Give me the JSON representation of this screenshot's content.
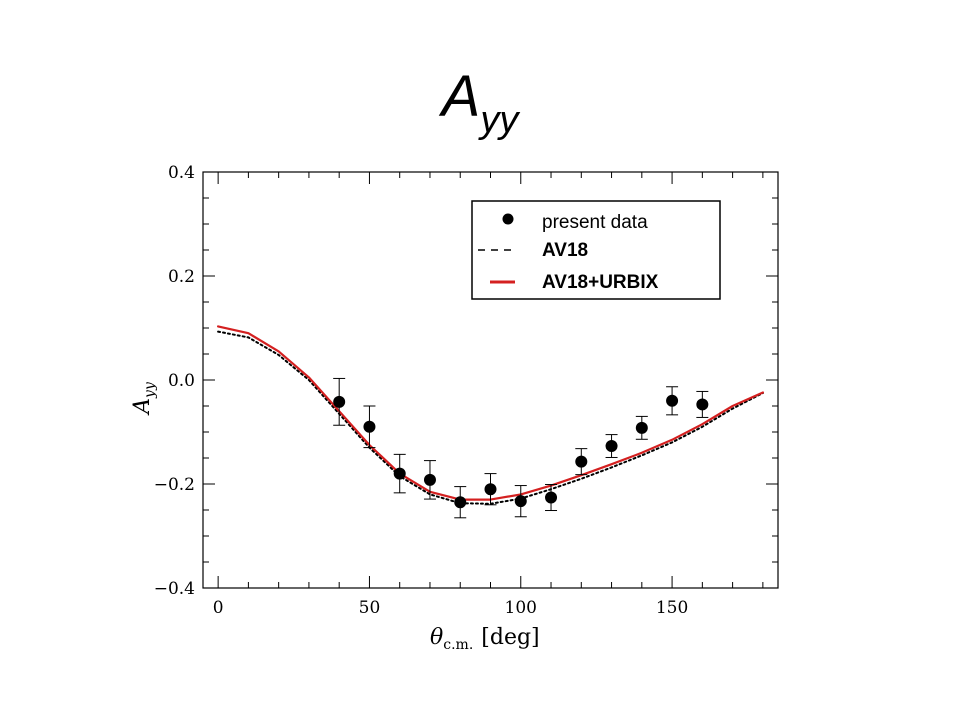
{
  "title": {
    "main": "A",
    "sub": "yy"
  },
  "colors": {
    "theory_full": "#d42020",
    "theory_nn": "#000000",
    "data": "#000000",
    "axes": "#000000"
  },
  "chart_data": {
    "type": "scatter",
    "xlabel": {
      "main": "θ",
      "sub": "c.m.",
      "unit": "[deg]"
    },
    "ylabel": {
      "main": "A",
      "sub": "yy"
    },
    "xlim": [
      -5,
      185
    ],
    "ylim": [
      -0.4,
      0.4
    ],
    "x_ticks": [
      0,
      50,
      100,
      150
    ],
    "x_tick_labels": [
      "0",
      "50",
      "100",
      "150"
    ],
    "y_ticks": [
      -0.4,
      -0.2,
      0.0,
      0.2,
      0.4
    ],
    "y_tick_labels": [
      "−0.4",
      "−0.2",
      "0.0",
      "0.2",
      "0.4"
    ],
    "legend_position": "top-right",
    "series": [
      {
        "name": "present data",
        "kind": "points",
        "x": [
          40,
          50,
          60,
          70,
          80,
          90,
          100,
          110,
          120,
          130,
          140,
          150,
          160
        ],
        "y": [
          -0.042,
          -0.09,
          -0.18,
          -0.192,
          -0.235,
          -0.21,
          -0.233,
          -0.226,
          -0.157,
          -0.127,
          -0.092,
          -0.04,
          -0.047
        ],
        "err": [
          0.045,
          0.04,
          0.037,
          0.037,
          0.03,
          0.03,
          0.03,
          0.025,
          0.025,
          0.022,
          0.022,
          0.027,
          0.025
        ]
      },
      {
        "name": "AV18",
        "kind": "dashed-line",
        "x": [
          0,
          10,
          20,
          30,
          40,
          50,
          60,
          70,
          80,
          90,
          100,
          110,
          120,
          130,
          140,
          150,
          160,
          170,
          180
        ],
        "y": [
          0.093,
          0.082,
          0.048,
          0.0,
          -0.065,
          -0.13,
          -0.185,
          -0.22,
          -0.237,
          -0.238,
          -0.228,
          -0.21,
          -0.19,
          -0.168,
          -0.145,
          -0.12,
          -0.09,
          -0.055,
          -0.025
        ]
      },
      {
        "name": "AV18+URBIX",
        "kind": "solid-line",
        "x": [
          0,
          10,
          20,
          30,
          40,
          50,
          60,
          70,
          80,
          90,
          100,
          110,
          120,
          130,
          140,
          150,
          160,
          170,
          180
        ],
        "y": [
          0.103,
          0.09,
          0.055,
          0.005,
          -0.06,
          -0.125,
          -0.18,
          -0.215,
          -0.23,
          -0.23,
          -0.22,
          -0.203,
          -0.183,
          -0.162,
          -0.14,
          -0.115,
          -0.085,
          -0.05,
          -0.024
        ]
      }
    ]
  }
}
